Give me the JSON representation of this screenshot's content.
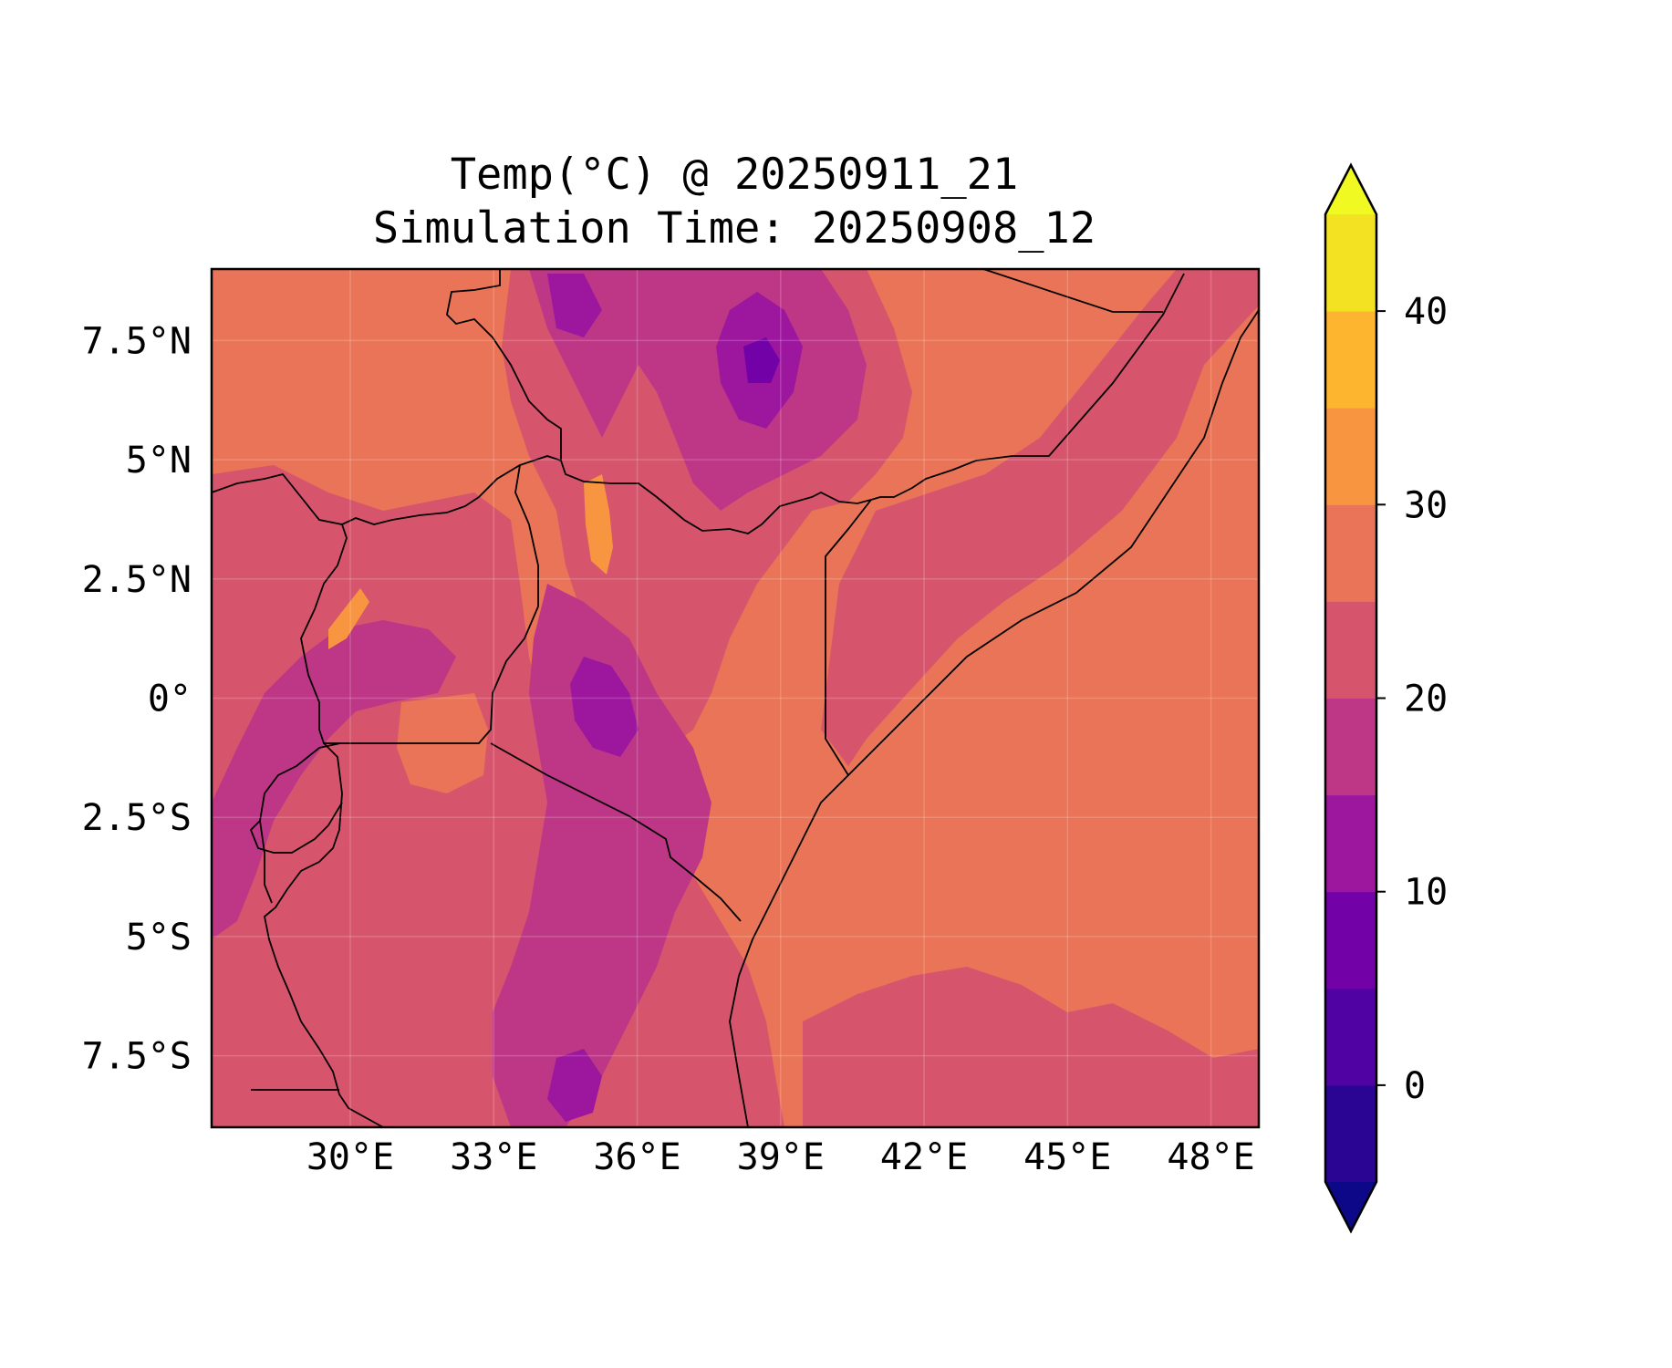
{
  "figure": {
    "title_line1": "Temp(°C) @ 20250911_21",
    "title_line2": "Simulation Time: 20250908_12"
  },
  "map": {
    "extent": {
      "lon": [
        27.1,
        49.0
      ],
      "lat": [
        -9.0,
        9.0
      ]
    },
    "lon_ticks": [
      {
        "value": 30,
        "label": "30°E"
      },
      {
        "value": 33,
        "label": "33°E"
      },
      {
        "value": 36,
        "label": "36°E"
      },
      {
        "value": 39,
        "label": "39°E"
      },
      {
        "value": 42,
        "label": "42°E"
      },
      {
        "value": 45,
        "label": "45°E"
      },
      {
        "value": 48,
        "label": "48°E"
      }
    ],
    "lat_ticks": [
      {
        "value": 7.5,
        "label": "7.5°N"
      },
      {
        "value": 5,
        "label": "5°N"
      },
      {
        "value": 2.5,
        "label": "2.5°N"
      },
      {
        "value": 0,
        "label": "0°"
      },
      {
        "value": -2.5,
        "label": "2.5°S"
      },
      {
        "value": -5,
        "label": "5°S"
      },
      {
        "value": -7.5,
        "label": "7.5°S"
      }
    ],
    "gridlines": true,
    "background_color": "#e97457",
    "regions": [
      {
        "name": "warm-25-30",
        "color": "#e97457"
      },
      {
        "name": "mild-20-25",
        "color": "#d6556d"
      },
      {
        "name": "cool-15-20",
        "color": "#bd3786"
      },
      {
        "name": "cold-10-15",
        "color": "#9c179e"
      },
      {
        "name": "colder-5-10",
        "color": "#7201a8"
      },
      {
        "name": "hot-30-35",
        "color": "#f89540"
      }
    ]
  },
  "colorbar": {
    "levels": [
      -5,
      0,
      5,
      10,
      15,
      20,
      25,
      30,
      35,
      40,
      45
    ],
    "colors": [
      "#2a0593",
      "#5102a3",
      "#7201a8",
      "#9c179e",
      "#bd3786",
      "#d6556d",
      "#e97457",
      "#f89540",
      "#fdb42f",
      "#f3e222"
    ],
    "under_color": "#0d0887",
    "over_color": "#f0f921",
    "ticks": [
      {
        "value": 0,
        "label": "0"
      },
      {
        "value": 10,
        "label": "10"
      },
      {
        "value": 20,
        "label": "20"
      },
      {
        "value": 30,
        "label": "30"
      },
      {
        "value": 40,
        "label": "40"
      }
    ]
  }
}
